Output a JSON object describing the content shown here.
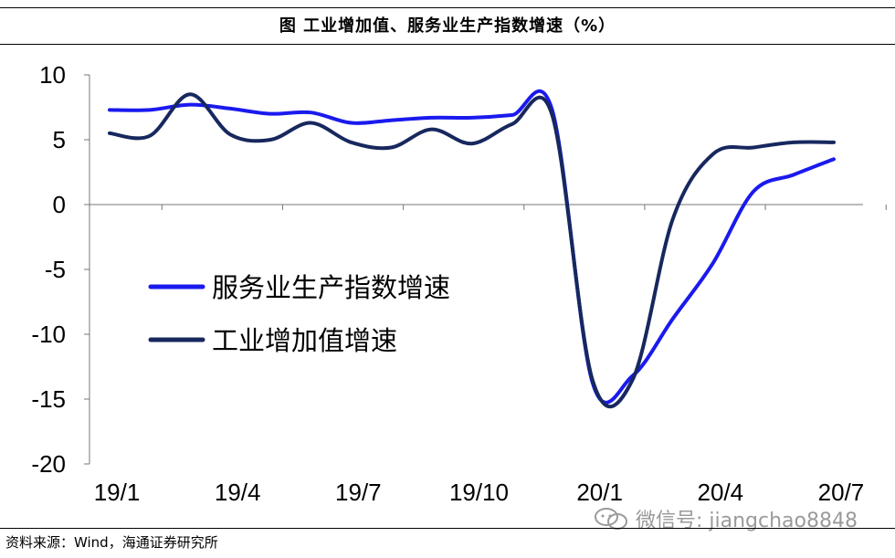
{
  "header": {
    "title": "图  工业增加值、服务业生产指数增速（%）"
  },
  "footer": {
    "source": "资料来源：Wind，海通证券研究所"
  },
  "watermark": {
    "text": "微信号: jiangchao8848",
    "icon": "wechat-icon",
    "color": "#9a9a9a"
  },
  "chart_data": {
    "type": "line",
    "title": "工业增加值、服务业生产指数增速（%）",
    "xlabel": "",
    "ylabel": "",
    "ylim": [
      -20,
      10
    ],
    "yticks": [
      10,
      5,
      0,
      -5,
      -10,
      -15,
      -20
    ],
    "ytick_labels": [
      "10",
      "5",
      "0",
      "-5",
      "-10",
      "-15",
      "-20"
    ],
    "x_tick_labels": [
      "19/1",
      "19/4",
      "19/7",
      "19/10",
      "20/1",
      "20/4",
      "20/7"
    ],
    "x_tick_index": [
      0,
      3,
      6,
      9,
      12,
      15,
      18
    ],
    "x": [
      "19/1",
      "19/2",
      "19/3",
      "19/4",
      "19/5",
      "19/6",
      "19/7",
      "19/8",
      "19/9",
      "19/10",
      "19/11",
      "19/12",
      "20/1",
      "20/2",
      "20/3",
      "20/4",
      "20/5",
      "20/6",
      "20/7"
    ],
    "grid": false,
    "legend": {
      "position": "center-left"
    },
    "series": [
      {
        "name": "服务业生产指数增速",
        "color": "#1a1aee",
        "values": [
          7.3,
          7.3,
          7.7,
          7.4,
          7.0,
          7.1,
          6.3,
          6.5,
          6.7,
          6.7,
          6.9,
          7.3,
          -13.7,
          -13.2,
          -8.8,
          -4.5,
          1.0,
          2.3,
          3.5
        ]
      },
      {
        "name": "工业增加值增速",
        "color": "#17285e",
        "values": [
          5.5,
          5.3,
          8.5,
          5.4,
          5.0,
          6.3,
          4.8,
          4.4,
          5.8,
          4.7,
          6.2,
          6.9,
          -13.5,
          -13.5,
          -1.1,
          3.9,
          4.4,
          4.8,
          4.8
        ]
      }
    ]
  }
}
